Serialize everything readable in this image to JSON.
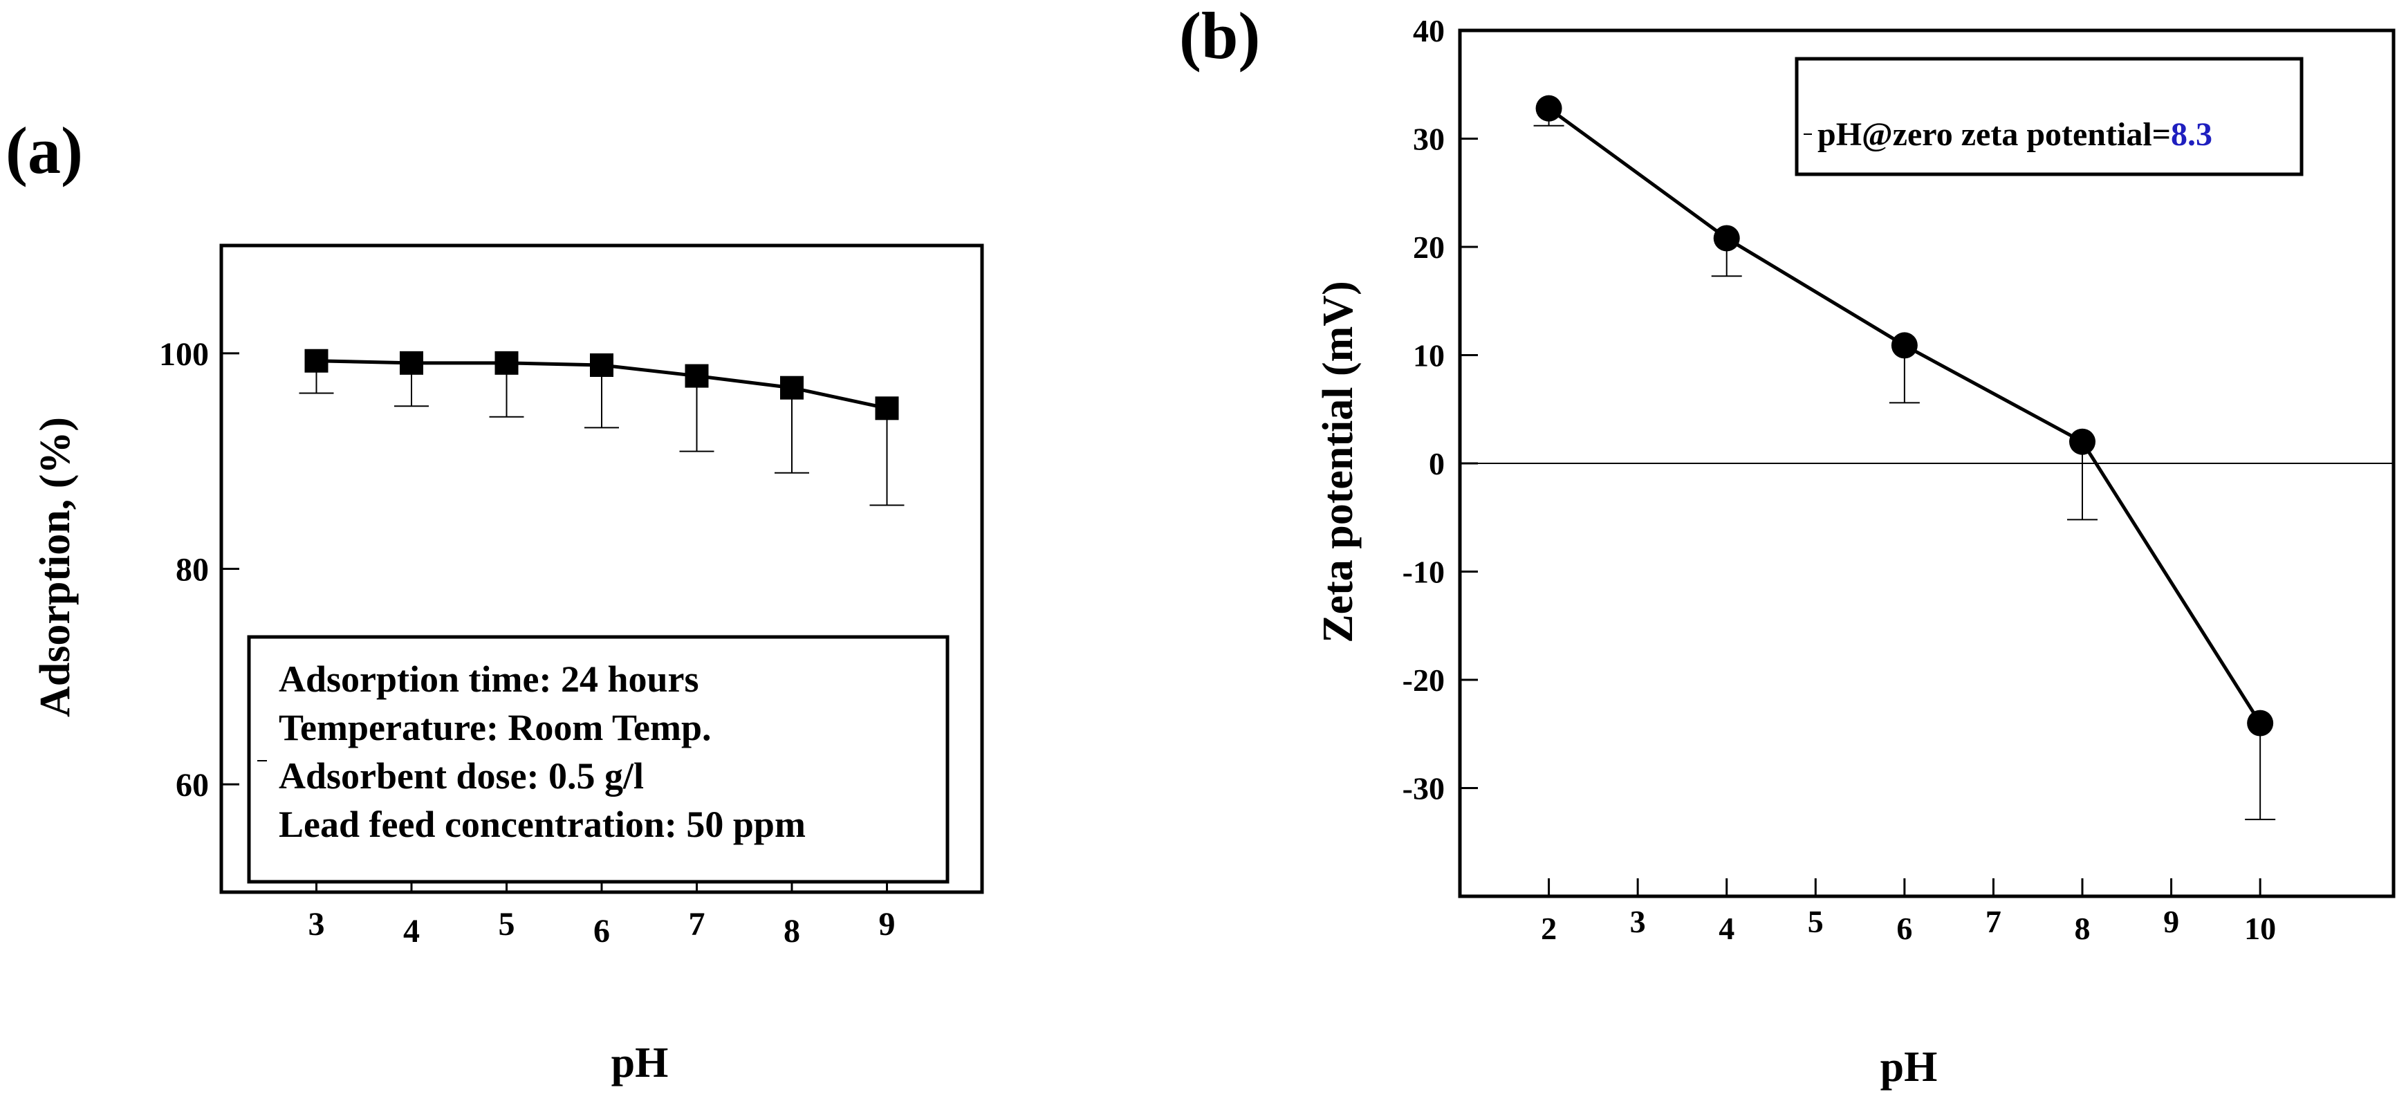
{
  "figure": {
    "panel_a_label": "(a)",
    "panel_b_label": "(b)"
  },
  "chart_data": [
    {
      "type": "line",
      "panel": "(a)",
      "title": "",
      "xlabel": "pH",
      "ylabel": "Adsorption, (%)",
      "x_ticks": [
        3,
        4,
        5,
        6,
        7,
        8,
        9
      ],
      "y_ticks": [
        60,
        80,
        100
      ],
      "xlim": [
        2,
        10
      ],
      "ylim": [
        50,
        110
      ],
      "marker": "square",
      "series": [
        {
          "name": "Adsorption",
          "x": [
            3,
            4,
            5,
            6,
            7,
            8,
            9
          ],
          "y": [
            99.3,
            99.1,
            99.1,
            98.9,
            97.9,
            96.8,
            94.9
          ],
          "err_lower": [
            3.0,
            4.0,
            5.0,
            5.8,
            7.0,
            7.9,
            9.0
          ]
        }
      ],
      "legend": {
        "position": "bottom-left",
        "lines": [
          "Adsorption time: 24 hours",
          "Temperature: Room Temp.",
          "Adsorbent dose: 0.5 g/l",
          "Lead feed concentration: 50 ppm"
        ]
      }
    },
    {
      "type": "line",
      "panel": "(b)",
      "title": "",
      "xlabel": "pH",
      "ylabel": "Zeta potential (mV)",
      "x_ticks": [
        2,
        3,
        4,
        5,
        6,
        7,
        8,
        9,
        10
      ],
      "y_ticks": [
        -30,
        -20,
        -10,
        0,
        10,
        20,
        30,
        40
      ],
      "xlim": [
        1,
        11.5
      ],
      "ylim": [
        -40,
        40
      ],
      "zero_line": true,
      "marker": "circle",
      "series": [
        {
          "name": "Zeta potential",
          "x": [
            2,
            4,
            6,
            8,
            10
          ],
          "y": [
            32.8,
            20.8,
            10.9,
            2.0,
            -24.0
          ],
          "err_lower": [
            1.6,
            3.5,
            5.3,
            7.2,
            8.9
          ]
        }
      ],
      "legend": {
        "position": "top-right",
        "text": "pH@zero zeta potential=",
        "value": "8.3",
        "value_color": "#1f1fbf"
      }
    }
  ]
}
